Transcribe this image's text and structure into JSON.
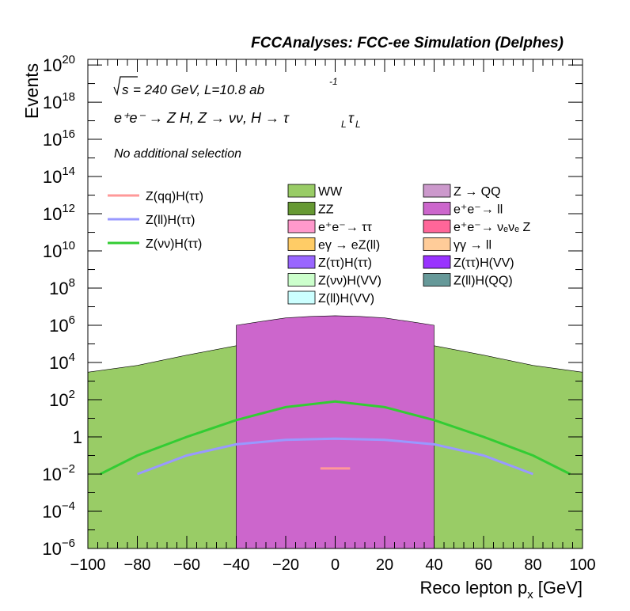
{
  "chart_data": {
    "type": "bar",
    "title": "FCCAnalyses: FCC-ee Simulation (Delphes)",
    "xlabel": "Reco lepton p",
    "xlabel_sub": "x",
    "xlabel_unit": "[GeV]",
    "ylabel": "Events",
    "xlim": [
      -100,
      100
    ],
    "ylim": [
      1e-06,
      2e+20
    ],
    "log_y": true,
    "grid": false,
    "legend_placement": "center",
    "annotations": {
      "energy_prefix": "s",
      "energy": "= 240 GeV, L=10.8 ab",
      "energy_exp": "-1",
      "process": "e⁺e⁻ → Z H, Z → νν, H → τ",
      "tau_sub": "L",
      "selection": "No additional selection"
    },
    "x_ticks": [
      "−100",
      "−80",
      "−60",
      "−40",
      "−20",
      "0",
      "20",
      "40",
      "60",
      "80",
      "100"
    ],
    "y_ticks": [
      {
        "base": "10",
        "exp": "20",
        "v": 1e+20
      },
      {
        "base": "10",
        "exp": "18",
        "v": 1e+18
      },
      {
        "base": "10",
        "exp": "16",
        "v": 1e+16
      },
      {
        "base": "10",
        "exp": "14",
        "v": 100000000000000.0
      },
      {
        "base": "10",
        "exp": "12",
        "v": 1000000000000.0
      },
      {
        "base": "10",
        "exp": "10",
        "v": 10000000000.0
      },
      {
        "base": "10",
        "exp": "8",
        "v": 100000000.0
      },
      {
        "base": "10",
        "exp": "6",
        "v": 1000000.0
      },
      {
        "base": "10",
        "exp": "4",
        "v": 10000.0
      },
      {
        "base": "10",
        "exp": "2",
        "v": 100.0
      },
      {
        "base": "1",
        "exp": "",
        "v": 1
      },
      {
        "base": "10",
        "exp": "−2",
        "v": 0.01
      },
      {
        "base": "10",
        "exp": "−4",
        "v": 0.0001
      },
      {
        "base": "10",
        "exp": "−6",
        "v": 1e-06
      }
    ],
    "legend_signal": [
      {
        "name": "Z(qq)H(ττ)",
        "color": "#ff9999"
      },
      {
        "name": "Z(ll)H(ττ)",
        "color": "#9999ff"
      },
      {
        "name": "Z(νν)H(ττ)",
        "color": "#33cc33"
      }
    ],
    "legend_bkg": [
      {
        "name": "WW",
        "color": "#99cc66"
      },
      {
        "name": "Z → QQ",
        "color": "#cc99cc"
      },
      {
        "name": "ZZ",
        "color": "#669933"
      },
      {
        "name": "e⁺e⁻→ ll",
        "color": "#cc66cc"
      },
      {
        "name": "e⁺e⁻→ ττ",
        "color": "#ff99cc"
      },
      {
        "name": "e⁺e⁻→ νₑνₑ Z",
        "color": "#ff6699"
      },
      {
        "name": "eγ → eZ(ll)",
        "color": "#ffcc66"
      },
      {
        "name": "γγ → ll",
        "color": "#ffcc99"
      },
      {
        "name": "Z(ττ)H(ττ)",
        "color": "#9966ff"
      },
      {
        "name": "Z(ττ)H(VV)",
        "color": "#9933ff"
      },
      {
        "name": "Z(νν)H(VV)",
        "color": "#ccffcc"
      },
      {
        "name": "Z(ll)H(QQ)",
        "color": "#669999"
      },
      {
        "name": "Z(ll)H(VV)",
        "color": "#ccffff"
      }
    ],
    "stack_envelopes": [
      {
        "name": "Z(ll)H(VV)",
        "color": "#ccffff",
        "x": [
          -85,
          -80,
          -60,
          -40,
          -20,
          0,
          20,
          40,
          60,
          80,
          85
        ],
        "y": [
          0.01,
          0.03,
          0.1,
          0.25,
          0.4,
          0.5,
          0.4,
          0.25,
          0.1,
          0.03,
          0.01
        ]
      },
      {
        "name": "Z(νν)H(VV)",
        "color": "#ccffcc",
        "x": [
          -90,
          -80,
          -60,
          -40,
          -20,
          0,
          20,
          40,
          60,
          80,
          90
        ],
        "y": [
          0.02,
          0.5,
          3,
          15,
          40,
          60,
          40,
          15,
          3,
          0.5,
          0.02
        ]
      },
      {
        "name": "e⁺e⁻→ νₑνₑ Z",
        "color": "#ff6699",
        "x": [
          -100,
          -80,
          -60,
          -40,
          -20,
          0,
          20,
          40,
          60,
          80,
          100
        ],
        "y": [
          200,
          300,
          450,
          600,
          750,
          800,
          750,
          600,
          450,
          300,
          200
        ]
      },
      {
        "name": "ZZ",
        "color": "#669933",
        "x": [
          -100,
          -80,
          -60,
          -40,
          -20,
          0,
          20,
          40,
          60,
          80,
          100
        ],
        "y": [
          800,
          2000,
          6000,
          15000,
          30000,
          40000,
          30000,
          15000,
          6000,
          2000,
          800
        ]
      },
      {
        "name": "e⁺e⁻→ ττ",
        "color": "#ff99cc",
        "x": [
          -100,
          -80,
          -60,
          -40,
          -20,
          0,
          20,
          40,
          60,
          80,
          100
        ],
        "y": [
          1500,
          3500,
          12000,
          40000,
          80000,
          100000,
          80000,
          40000,
          12000,
          3500,
          1500
        ]
      },
      {
        "name": "WW",
        "color": "#99cc66",
        "x": [
          -100,
          -80,
          -60,
          -40,
          -20,
          0,
          20,
          40,
          60,
          80,
          100
        ],
        "y": [
          3000,
          7000,
          25000,
          80000,
          150000,
          200000,
          150000,
          80000,
          25000,
          7000,
          3000
        ]
      },
      {
        "name": "e⁺e⁻→ ll",
        "color": "#cc66cc",
        "x": [
          -40,
          -30,
          -20,
          -10,
          0,
          10,
          20,
          30,
          40
        ],
        "y": [
          1000000,
          1600000,
          2500000,
          3000000,
          3300000,
          3000000,
          2500000,
          1600000,
          1000000
        ]
      }
    ],
    "signal_lines": [
      {
        "name": "Z(νν)H(ττ)",
        "color": "#33cc33",
        "x": [
          -95,
          -80,
          -60,
          -40,
          -20,
          0,
          20,
          40,
          60,
          80,
          95
        ],
        "y": [
          0.01,
          0.1,
          1,
          8,
          40,
          80,
          40,
          8,
          1,
          0.1,
          0.01
        ]
      },
      {
        "name": "Z(ll)H(ττ)",
        "color": "#9999ff",
        "x": [
          -80,
          -60,
          -40,
          -20,
          0,
          20,
          40,
          60,
          80
        ],
        "y": [
          0.01,
          0.1,
          0.4,
          0.7,
          0.8,
          0.7,
          0.4,
          0.1,
          0.01
        ]
      },
      {
        "name": "Z(qq)H(ττ)",
        "color": "#ff9999",
        "x": [
          -6,
          -4,
          4,
          6
        ],
        "y": [
          0.02,
          0.02,
          0.02,
          0.02
        ]
      }
    ]
  }
}
